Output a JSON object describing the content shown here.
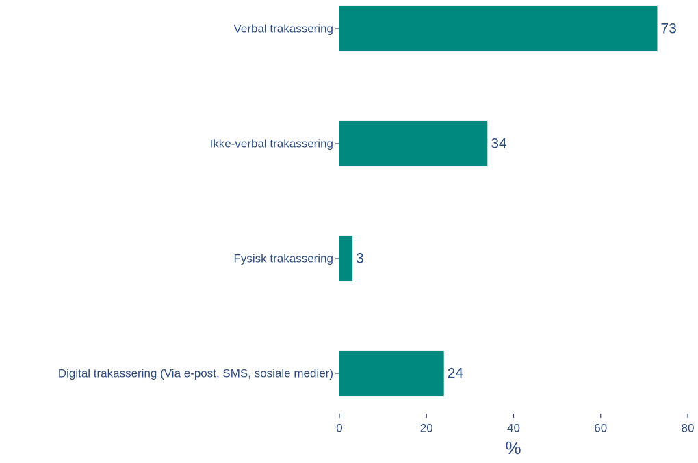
{
  "chart_data": {
    "type": "bar",
    "orientation": "horizontal",
    "categories": [
      "Verbal trakassering",
      "Ikke-verbal trakassering",
      "Fysisk trakassering",
      "Digital trakassering (Via e-post, SMS, sosiale medier)"
    ],
    "values": [
      73,
      34,
      3,
      24
    ],
    "color": "#00897f",
    "xlabel": "%",
    "xlim": [
      0,
      80
    ],
    "xticks": [
      0,
      20,
      40,
      60,
      80
    ],
    "grid": false
  }
}
